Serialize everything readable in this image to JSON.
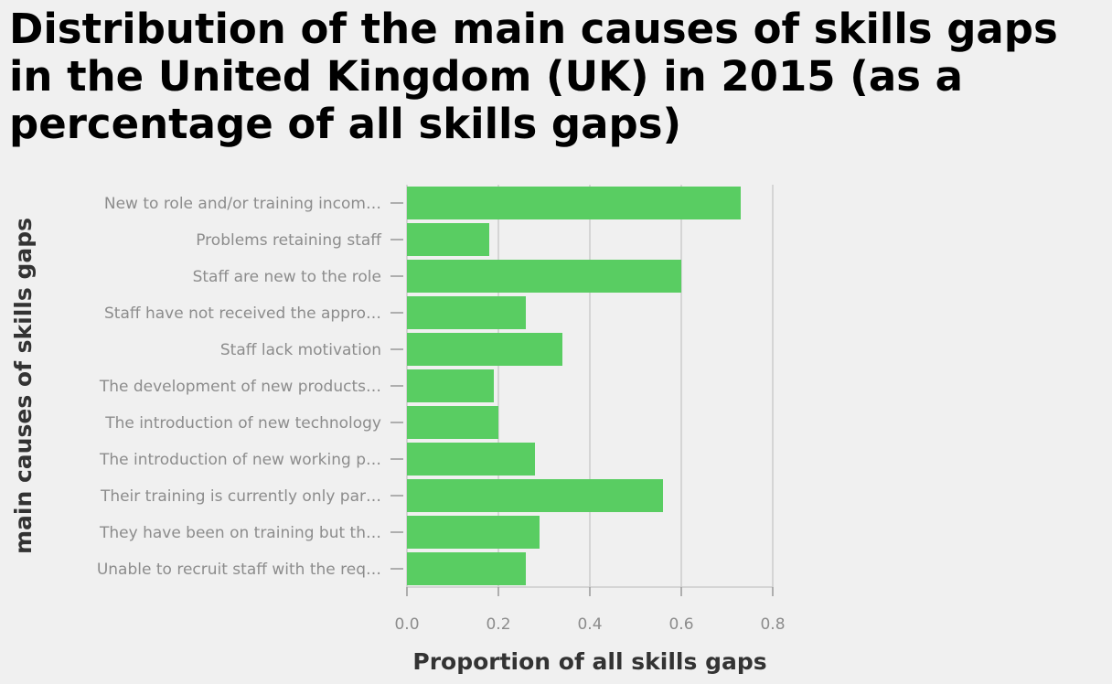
{
  "chart_data": {
    "type": "bar",
    "orientation": "horizontal",
    "title": "Distribution of the main causes of skills gaps in the United Kingdom (UK) in 2015 (as a percentage of all skills gaps)",
    "xlabel": "Proportion of all skills gaps",
    "ylabel": "main causes of skills gaps",
    "categories": [
      "New to role and/or training incom…",
      "Problems retaining staff",
      "Staff are new to the role",
      "Staff have not received the appro…",
      "Staff lack motivation",
      "The development of new products…",
      "The introduction of new technology",
      "The introduction of new working p…",
      "Their training is currently only par…",
      "They have been on training but th…",
      "Unable to recruit staff with the req…"
    ],
    "values": [
      0.73,
      0.18,
      0.6,
      0.26,
      0.34,
      0.19,
      0.2,
      0.28,
      0.56,
      0.29,
      0.26
    ],
    "xlim": [
      0,
      0.8
    ],
    "xticks": [
      "0.0",
      "0.2",
      "0.4",
      "0.6",
      "0.8"
    ],
    "grid": true,
    "legend": "none",
    "bar_color": "#59cd62",
    "grid_color": "#cccccc"
  }
}
